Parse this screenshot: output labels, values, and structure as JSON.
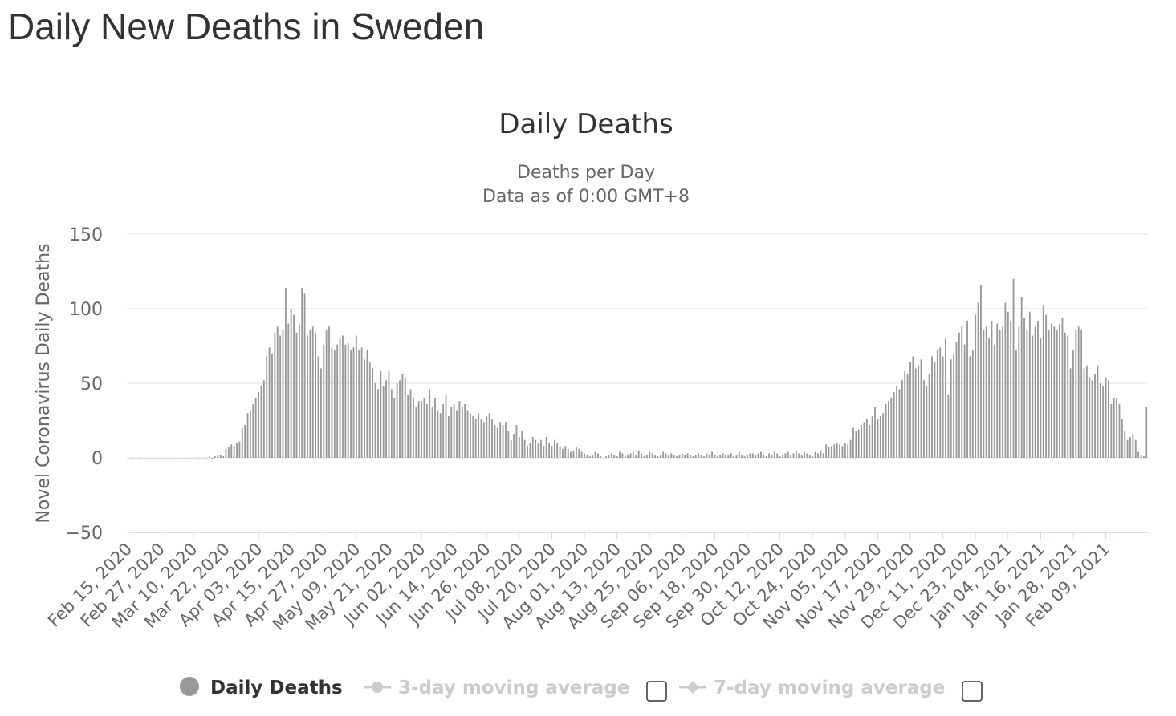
{
  "page": {
    "title": "Daily New Deaths in Sweden"
  },
  "chart_data": {
    "type": "bar",
    "title": "Daily Deaths",
    "subtitle_lines": [
      "Deaths per Day",
      "Data as of 0:00 GMT+8"
    ],
    "ylabel": "Novel Coronavirus Daily Deaths",
    "xlabel": "",
    "ylim": [
      -50,
      150
    ],
    "yticks": [
      -50,
      0,
      50,
      100,
      150
    ],
    "grid": true,
    "start_date": "2020-02-15",
    "xtick_labels": [
      "Feb 15, 2020",
      "Feb 27, 2020",
      "Mar 10, 2020",
      "Mar 22, 2020",
      "Apr 03, 2020",
      "Apr 15, 2020",
      "Apr 27, 2020",
      "May 09, 2020",
      "May 21, 2020",
      "Jun 02, 2020",
      "Jun 14, 2020",
      "Jun 26, 2020",
      "Jul 08, 2020",
      "Jul 20, 2020",
      "Aug 01, 2020",
      "Aug 13, 2020",
      "Aug 25, 2020",
      "Sep 06, 2020",
      "Sep 18, 2020",
      "Sep 30, 2020",
      "Oct 12, 2020",
      "Oct 24, 2020",
      "Nov 05, 2020",
      "Nov 17, 2020",
      "Nov 29, 2020",
      "Dec 11, 2020",
      "Dec 23, 2020",
      "Jan 04, 2021",
      "Jan 16, 2021",
      "Jan 28, 2021",
      "Feb 09, 2021"
    ],
    "xtick_step_days": 12,
    "series": [
      {
        "name": "Daily Deaths",
        "color": "#999999",
        "values": [
          0,
          0,
          0,
          0,
          0,
          0,
          0,
          0,
          0,
          0,
          0,
          0,
          0,
          0,
          0,
          0,
          0,
          0,
          0,
          0,
          0,
          0,
          0,
          0,
          0,
          0,
          0,
          0,
          0,
          0,
          1,
          -1,
          1,
          2,
          2,
          1,
          6,
          7,
          9,
          8,
          10,
          11,
          20,
          22,
          30,
          32,
          36,
          40,
          44,
          48,
          52,
          68,
          74,
          70,
          84,
          88,
          82,
          86,
          114,
          90,
          100,
          96,
          84,
          90,
          114,
          110,
          82,
          86,
          88,
          84,
          68,
          60,
          76,
          86,
          88,
          74,
          72,
          76,
          80,
          82,
          76,
          77,
          72,
          74,
          82,
          72,
          74,
          66,
          72,
          64,
          60,
          50,
          46,
          58,
          48,
          52,
          58,
          46,
          40,
          50,
          52,
          56,
          54,
          42,
          46,
          40,
          34,
          38,
          38,
          40,
          36,
          46,
          34,
          40,
          32,
          30,
          36,
          42,
          28,
          34,
          36,
          32,
          38,
          34,
          36,
          32,
          30,
          28,
          26,
          30,
          26,
          24,
          28,
          30,
          26,
          22,
          20,
          24,
          22,
          24,
          18,
          12,
          16,
          22,
          14,
          18,
          12,
          8,
          10,
          14,
          12,
          10,
          12,
          8,
          14,
          10,
          8,
          12,
          10,
          8,
          6,
          8,
          6,
          4,
          5,
          7,
          6,
          4,
          3,
          2,
          1,
          2,
          4,
          3,
          1,
          0,
          1,
          2,
          3,
          2,
          1,
          4,
          3,
          1,
          2,
          3,
          4,
          2,
          5,
          3,
          1,
          2,
          4,
          3,
          2,
          1,
          2,
          4,
          3,
          2,
          3,
          2,
          1,
          2,
          3,
          2,
          3,
          2,
          1,
          2,
          3,
          2,
          1,
          3,
          2,
          4,
          2,
          1,
          2,
          3,
          2,
          2,
          3,
          1,
          2,
          4,
          2,
          1,
          2,
          3,
          3,
          2,
          3,
          4,
          2,
          1,
          3,
          2,
          4,
          3,
          1,
          2,
          3,
          4,
          2,
          3,
          5,
          3,
          2,
          4,
          3,
          2,
          1,
          4,
          3,
          5,
          3,
          9,
          7,
          8,
          9,
          10,
          9,
          8,
          10,
          9,
          12,
          20,
          18,
          19,
          22,
          24,
          26,
          22,
          28,
          34,
          26,
          28,
          30,
          36,
          38,
          40,
          44,
          48,
          46,
          52,
          58,
          56,
          64,
          68,
          60,
          62,
          66,
          52,
          48,
          56,
          68,
          64,
          72,
          74,
          68,
          80,
          42,
          66,
          70,
          78,
          84,
          88,
          76,
          92,
          68,
          72,
          96,
          104,
          116,
          86,
          88,
          80,
          92,
          76,
          90,
          86,
          88,
          104,
          98,
          92,
          120,
          72,
          88,
          108,
          94,
          86,
          98,
          82,
          88,
          92,
          80,
          102,
          96,
          86,
          90,
          88,
          86,
          90,
          94,
          84,
          82,
          60,
          72,
          86,
          88,
          86,
          60,
          62,
          54,
          52,
          56,
          62,
          50,
          48,
          54,
          52,
          36,
          40,
          40,
          36,
          26,
          18,
          12,
          14,
          16,
          12,
          4,
          2,
          1,
          34
        ]
      },
      {
        "name": "3-day moving average",
        "color": "#cccccc",
        "visible": false,
        "values": []
      },
      {
        "name": "7-day moving average",
        "color": "#cccccc",
        "visible": false,
        "values": []
      }
    ],
    "legend_position": "bottom-center",
    "colors": {
      "bar": "#999999",
      "grid": "#e6e6e6",
      "zero_line": "#cccccc",
      "axis_line": "#ccd6eb",
      "text": "#333333",
      "tick_text": "#666666",
      "legend_inactive": "#cccccc"
    }
  }
}
